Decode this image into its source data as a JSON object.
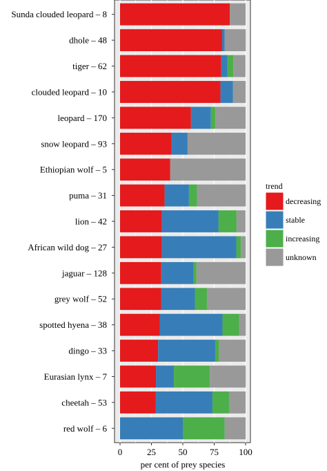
{
  "chart_data": {
    "type": "bar",
    "orientation": "horizontal",
    "stacked": true,
    "percent": true,
    "categories": [
      "Sunda clouded leopard – 8",
      "dhole – 48",
      "tiger – 62",
      "clouded leopard – 10",
      "leopard – 170",
      "snow leopard – 93",
      "Ethiopian wolf – 5",
      "puma – 31",
      "lion – 42",
      "African wild dog – 27",
      "jaguar – 128",
      "grey wolf – 52",
      "spotted hyena – 38",
      "dingo – 33",
      "Eurasian lynx – 7",
      "cheetah – 53",
      "red wolf – 6"
    ],
    "series": [
      {
        "name": "decreasing",
        "color": "#e41a1c",
        "values": [
          87.5,
          81.3,
          80.6,
          80.0,
          56.5,
          40.9,
          40.0,
          35.5,
          33.3,
          33.3,
          32.8,
          32.7,
          31.6,
          30.3,
          28.6,
          28.3,
          0
        ]
      },
      {
        "name": "stable",
        "color": "#377eb8",
        "values": [
          0,
          2.1,
          4.8,
          10.0,
          15.9,
          12.9,
          0,
          19.4,
          45.2,
          59.3,
          25.8,
          26.9,
          50.0,
          45.5,
          14.3,
          45.3,
          50.0
        ]
      },
      {
        "name": "increasing",
        "color": "#4daf4a",
        "values": [
          0,
          0,
          4.8,
          0,
          3.5,
          0,
          0,
          6.5,
          14.3,
          3.7,
          2.3,
          9.6,
          13.2,
          3.0,
          28.6,
          13.2,
          33.3
        ]
      },
      {
        "name": "unknown",
        "color": "#999999",
        "values": [
          12.5,
          16.7,
          9.7,
          10.0,
          24.1,
          46.2,
          60.0,
          38.7,
          7.1,
          3.7,
          39.1,
          30.8,
          5.3,
          21.2,
          28.6,
          13.2,
          16.7
        ]
      }
    ],
    "xlabel": "per cent of prey species",
    "ylabel": "",
    "xlim": [
      0,
      100
    ],
    "xticks": [
      "0",
      "25",
      "50",
      "75",
      "100"
    ],
    "legend": {
      "title": "trend",
      "position": "right"
    },
    "grid": true,
    "panel_background": "#ebebeb"
  }
}
